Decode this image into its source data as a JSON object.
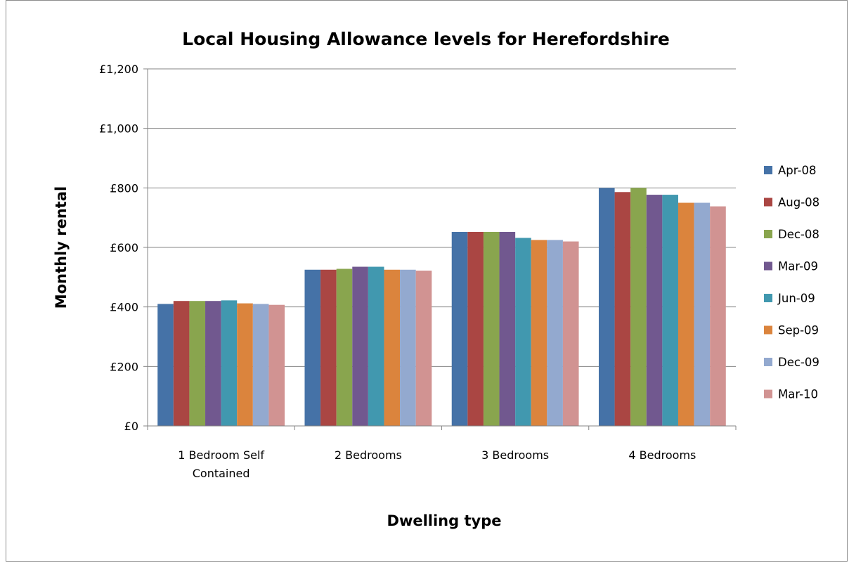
{
  "chart_data": {
    "type": "bar",
    "title": "Local Housing Allowance levels for Herefordshire",
    "xlabel": "Dwelling type",
    "ylabel": "Monthly rental",
    "ylim": [
      0,
      1200
    ],
    "y_ticks": [
      0,
      200,
      400,
      600,
      800,
      1000,
      1200
    ],
    "y_tick_labels": [
      "£0",
      "£200",
      "£400",
      "£600",
      "£800",
      "£1,000",
      "£1,200"
    ],
    "grid": true,
    "legend_position": "right",
    "categories": [
      [
        "1 Bedroom Self",
        "Contained"
      ],
      [
        "2 Bedrooms"
      ],
      [
        "3 Bedrooms"
      ],
      [
        "4 Bedrooms"
      ]
    ],
    "series": [
      {
        "name": "Apr-08",
        "color": "#4572A7",
        "values": [
          410,
          525,
          652,
          800
        ]
      },
      {
        "name": "Aug-08",
        "color": "#AA4643",
        "values": [
          420,
          525,
          652,
          786
        ]
      },
      {
        "name": "Dec-08",
        "color": "#89A54E",
        "values": [
          420,
          528,
          652,
          800
        ]
      },
      {
        "name": "Mar-09",
        "color": "#71588F",
        "values": [
          420,
          535,
          652,
          777
        ]
      },
      {
        "name": "Jun-09",
        "color": "#4198AF",
        "values": [
          422,
          535,
          632,
          777
        ]
      },
      {
        "name": "Sep-09",
        "color": "#DB843D",
        "values": [
          412,
          525,
          625,
          750
        ]
      },
      {
        "name": "Dec-09",
        "color": "#93A9CF",
        "values": [
          410,
          525,
          625,
          750
        ]
      },
      {
        "name": "Mar-10",
        "color": "#D19392",
        "values": [
          407,
          522,
          620,
          738
        ]
      }
    ]
  }
}
